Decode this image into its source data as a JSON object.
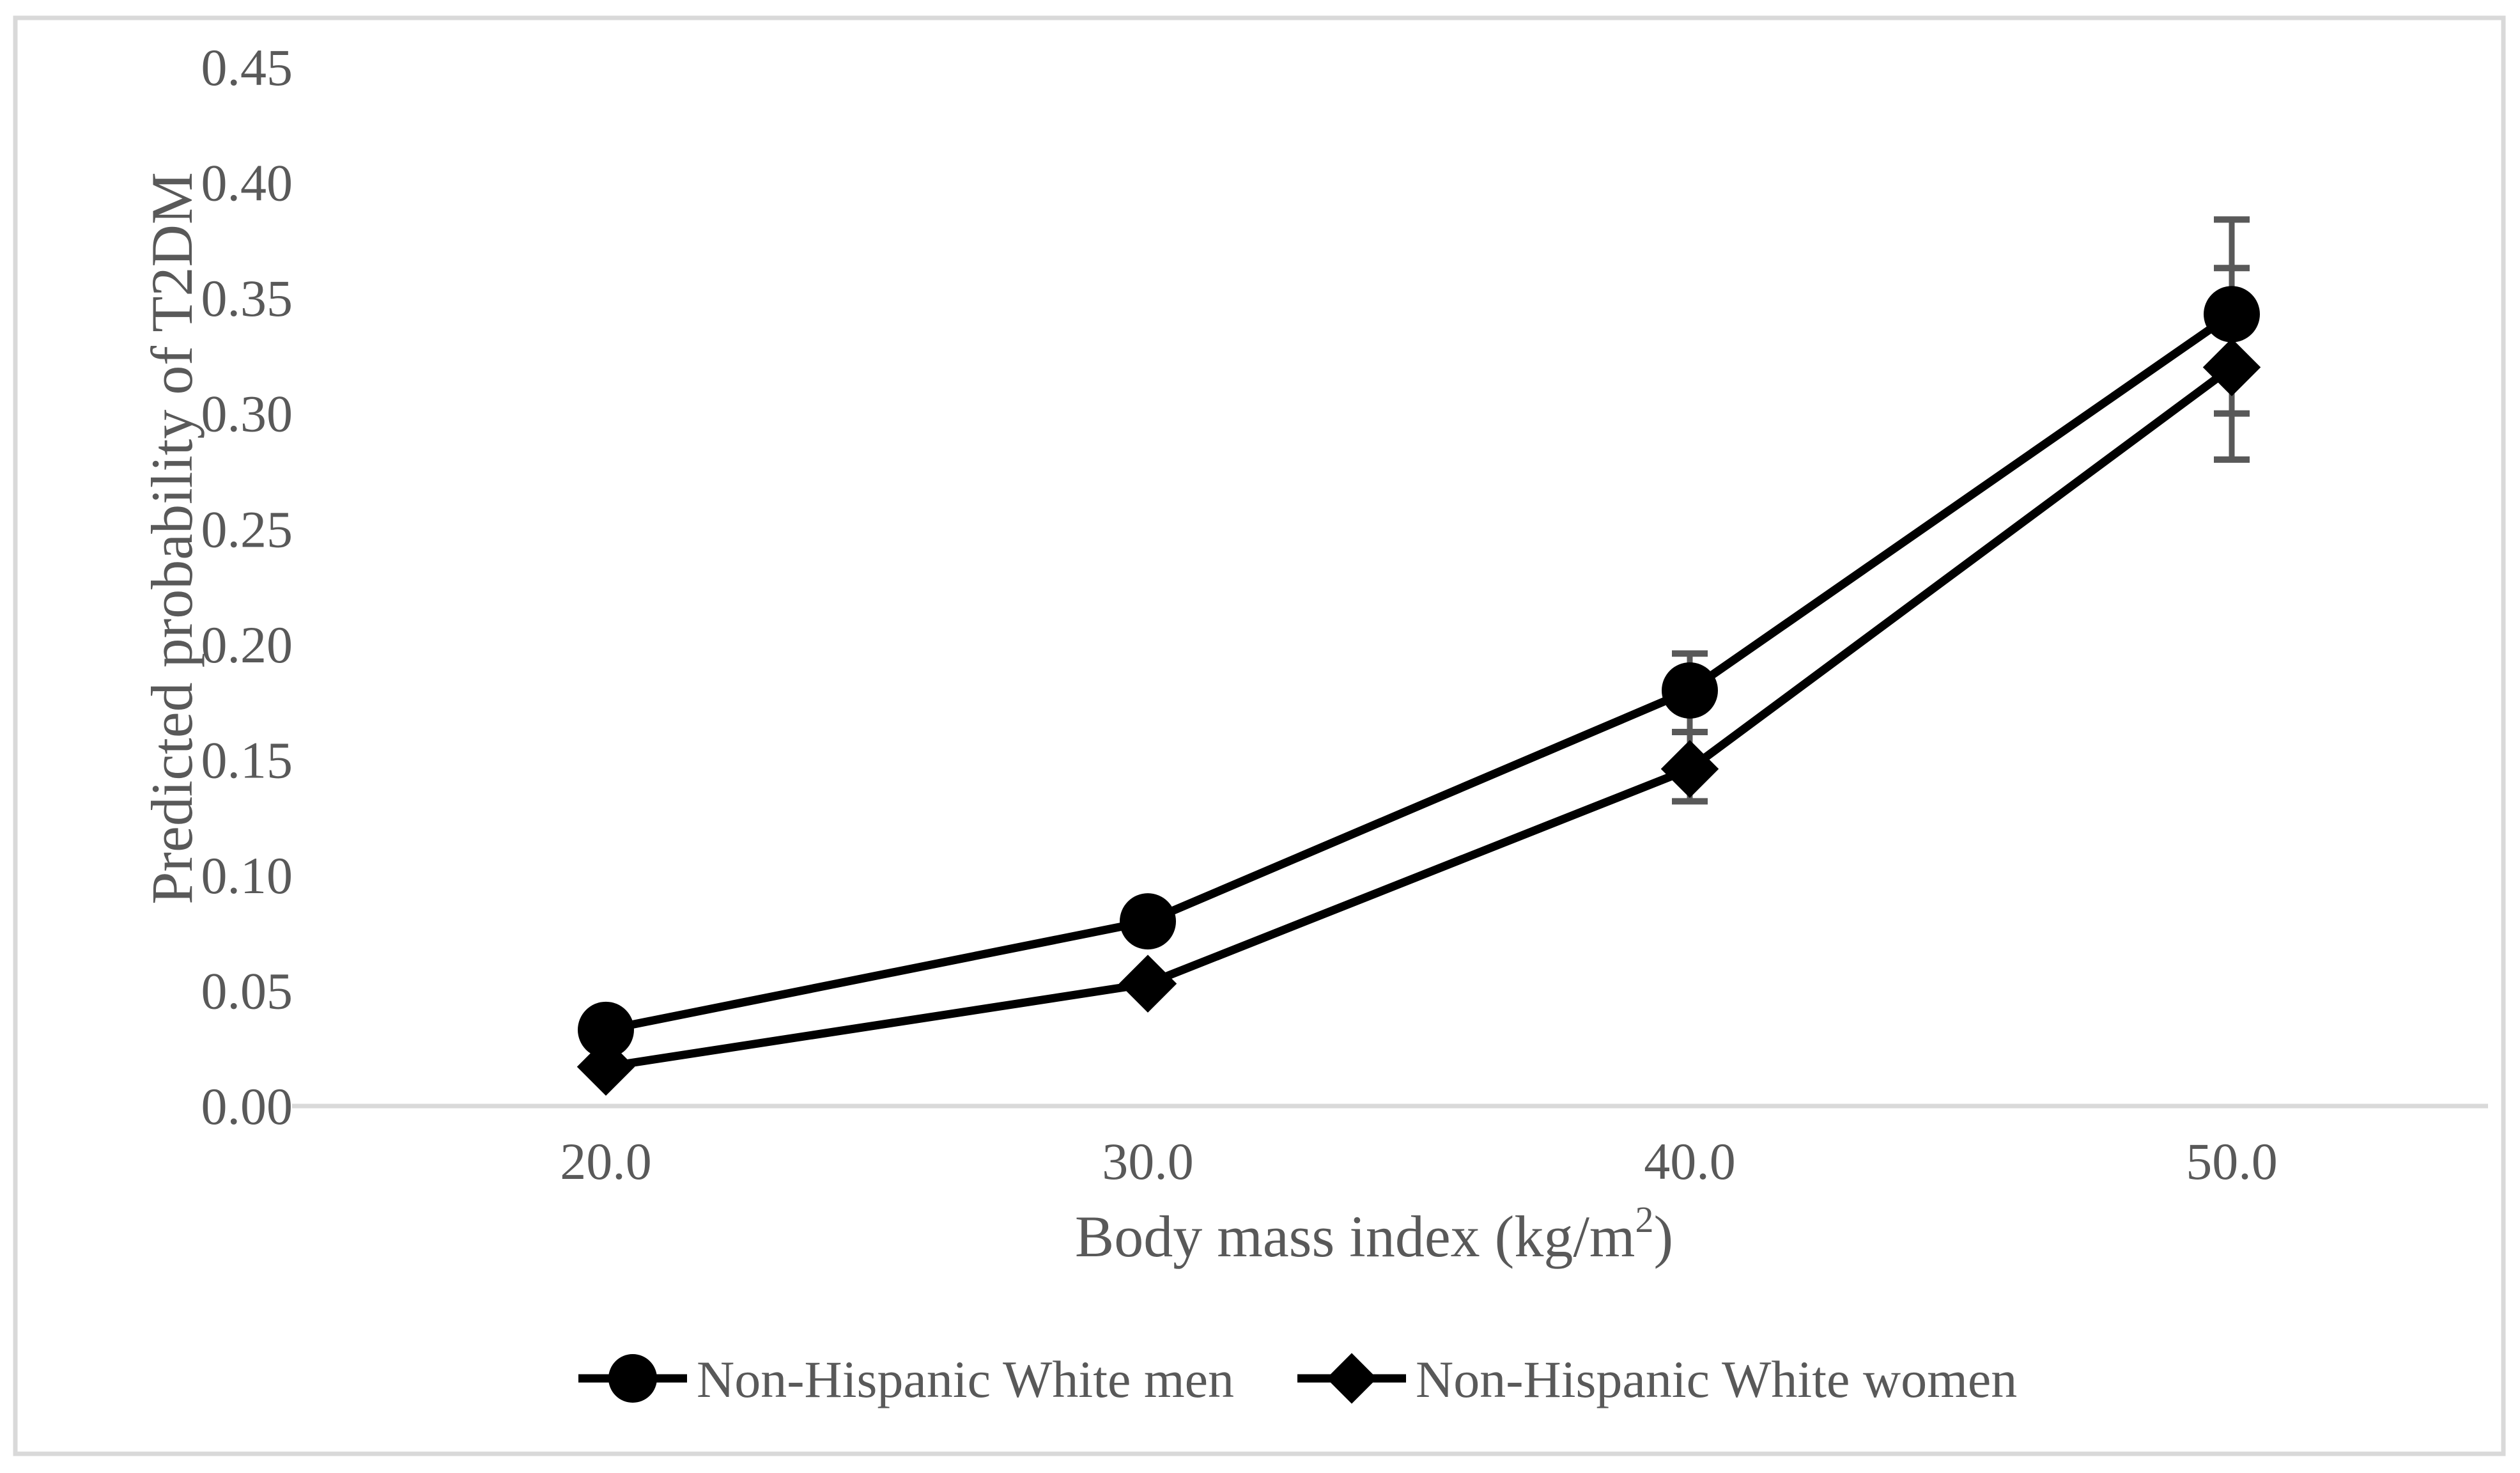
{
  "figure": {
    "background": "#ffffff",
    "border_color": "#d9d9d9"
  },
  "chart_data": {
    "type": "line",
    "title": "",
    "x": [
      20.0,
      30.0,
      40.0,
      50.0
    ],
    "categories": [
      "20.0",
      "30.0",
      "40.0",
      "50.0"
    ],
    "series": [
      {
        "name": "Non-Hispanic White men",
        "marker": "circle",
        "color": "#000000",
        "values": [
          0.033,
          0.08,
          0.18,
          0.343
        ],
        "ci": [
          null,
          null,
          [
            0.162,
            0.196
          ],
          [
            0.3,
            0.384
          ]
        ]
      },
      {
        "name": "Non-Hispanic White women",
        "marker": "diamond",
        "color": "#000000",
        "values": [
          0.017,
          0.053,
          0.146,
          0.32
        ],
        "ci": [
          null,
          null,
          [
            0.132,
            0.162
          ],
          [
            0.28,
            0.363
          ]
        ]
      }
    ],
    "xlabel": "Body mass index (kg/m²)",
    "xlabel_parts": {
      "prefix": "Body mass index (kg/m",
      "sup": "2",
      "suffix": ")"
    },
    "ylabel": "Predicted probability of T2DM",
    "ylim": [
      0.0,
      0.45
    ],
    "y_tick_step": 0.05,
    "y_ticks": [
      "0.00",
      "0.05",
      "0.10",
      "0.15",
      "0.20",
      "0.25",
      "0.30",
      "0.35",
      "0.40",
      "0.45"
    ],
    "grid": false,
    "legend_position": "bottom",
    "text_color": "#595959",
    "axis_line_color": "#d9d9d9",
    "error_bar_color": "#595959"
  }
}
